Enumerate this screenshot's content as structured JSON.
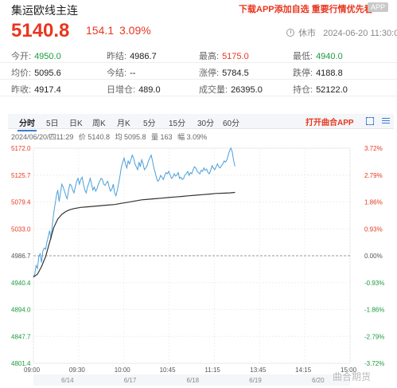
{
  "header": {
    "title": "集运欧线主连",
    "promo": "下载APP添加自选 重要行情优先看",
    "app_badge": "APP"
  },
  "quote": {
    "price": "5140.8",
    "change": "154.1",
    "change_pct": "3.09%",
    "status": "休市",
    "datetime": "2024-06-20 11:30:00"
  },
  "stats": [
    [
      {
        "label": "今开:",
        "value": "4950.0",
        "color": "green"
      },
      {
        "label": "昨结:",
        "value": "4986.7",
        "color": ""
      },
      {
        "label": "最高:",
        "value": "5175.0",
        "color": "red"
      },
      {
        "label": "最低:",
        "value": "4940.0",
        "color": "green"
      }
    ],
    [
      {
        "label": "均价:",
        "value": "5095.6",
        "color": ""
      },
      {
        "label": "今结:",
        "value": "--",
        "color": ""
      },
      {
        "label": "涨停:",
        "value": "5784.5",
        "color": ""
      },
      {
        "label": "跌停:",
        "value": "4188.8",
        "color": ""
      }
    ],
    [
      {
        "label": "昨收:",
        "value": "4917.4",
        "color": ""
      },
      {
        "label": "日增仓:",
        "value": "489.0",
        "color": ""
      },
      {
        "label": "成交量:",
        "value": "26395.0",
        "color": ""
      },
      {
        "label": "持仓:",
        "value": "52122.0",
        "color": ""
      }
    ]
  ],
  "tabs": [
    "分时",
    "5日",
    "日K",
    "周K",
    "月K",
    "5分",
    "15分",
    "30分",
    "60分"
  ],
  "open_app": "打开曲合APP",
  "legend": {
    "time": "2024/06/20/四11:29",
    "price": "价 5140.8",
    "avg": "均 5095.8",
    "volume": "量 163",
    "amplitude": "幅 3.09%"
  },
  "watermark": "曲合期货",
  "chart_data": {
    "type": "line",
    "y_ticks_left": [
      "5172.0",
      "5125.7",
      "5079.4",
      "5033.0",
      "4986.7",
      "4940.4",
      "4894.0",
      "4847.7",
      "4801.4"
    ],
    "y_ticks_right": [
      "3.72%",
      "2.79%",
      "1.86%",
      "0.93%",
      "0.00%",
      "-0.93%",
      "-1.86%",
      "-2.79%",
      "-3.72%"
    ],
    "y_tick_colors": [
      "red",
      "red",
      "red",
      "red",
      "neutral",
      "green",
      "green",
      "green",
      "green"
    ],
    "x_ticks": [
      "09:00",
      "09:30",
      "10:00",
      "10:45",
      "11:15",
      "13:45",
      "14:15",
      "15:00"
    ],
    "x_dates": [
      "6/14",
      "6/17",
      "6/18",
      "6/19",
      "6/20"
    ],
    "ylim": [
      4801.4,
      5172.0
    ],
    "baseline": 4986.7,
    "price_color": "#4a9fd8",
    "avg_color": "#333333",
    "series": [
      {
        "name": "价",
        "x": [
          0,
          1,
          2,
          3,
          4,
          5,
          6,
          7,
          8,
          9,
          10,
          11,
          12,
          13,
          14,
          15,
          16,
          17,
          18,
          19,
          20,
          21,
          22,
          23,
          24,
          25,
          26,
          27,
          28,
          29,
          30,
          31,
          32,
          33,
          34,
          35,
          36,
          37,
          38,
          39,
          40,
          41,
          42,
          43,
          44,
          45,
          46,
          47,
          48,
          49,
          50,
          51,
          52,
          53,
          54,
          55,
          56,
          57,
          58,
          59,
          60,
          61,
          62,
          63,
          64,
          65,
          66,
          67,
          68,
          69,
          70,
          71,
          72,
          73,
          74,
          75,
          76,
          77,
          78,
          79,
          80,
          81,
          82,
          83,
          84,
          85,
          86,
          87,
          88,
          89,
          90,
          91,
          92,
          93,
          94,
          95,
          96,
          97,
          98,
          99,
          100,
          101,
          102,
          103,
          104,
          105,
          106,
          107,
          108,
          109,
          110,
          111,
          112,
          113,
          114,
          115,
          116,
          117,
          118,
          119,
          120,
          121,
          122,
          123,
          124,
          125,
          126,
          127,
          128,
          129,
          130,
          131,
          132,
          133,
          134,
          135,
          136,
          137,
          138,
          139,
          140,
          141,
          142,
          143,
          144,
          145,
          146,
          147,
          148,
          149
        ],
        "values": [
          4950,
          4955,
          4970,
          4965,
          4985,
          4990,
          4975,
          4995,
          5000,
          4998,
          5010,
          5020,
          5030,
          5015,
          5040,
          5060,
          5075,
          5090,
          5100,
          5080,
          5095,
          5110,
          5105,
          5098,
          5090,
          5085,
          5100,
          5110,
          5108,
          5100,
          5095,
          5105,
          5115,
          5120,
          5110,
          5118,
          5122,
          5110,
          5100,
          5095,
          5105,
          5112,
          5120,
          5110,
          5100,
          5105,
          5098,
          5102,
          5110,
          5115,
          5120,
          5118,
          5110,
          5108,
          5112,
          5115,
          5105,
          5098,
          5102,
          5110,
          5095,
          5090,
          5100,
          5112,
          5125,
          5140,
          5148,
          5155,
          5145,
          5138,
          5150,
          5145,
          5152,
          5160,
          5155,
          5145,
          5140,
          5135,
          5148,
          5140,
          5152,
          5145,
          5135,
          5138,
          5142,
          5150,
          5155,
          5160,
          5150,
          5138,
          5130,
          5120,
          5115,
          5118,
          5125,
          5122,
          5118,
          5125,
          5130,
          5128,
          5132,
          5126,
          5120,
          5122,
          5128,
          5124,
          5126,
          5130,
          5120,
          5122,
          5118,
          5120,
          5126,
          5128,
          5132,
          5125,
          5130,
          5128,
          5135,
          5140,
          5138,
          5132,
          5130,
          5128,
          5134,
          5132,
          5138,
          5134,
          5136,
          5130,
          5128,
          5134,
          5142,
          5138,
          5135,
          5140,
          5145,
          5140,
          5138,
          5142,
          5145,
          5150,
          5148,
          5152,
          5160,
          5168,
          5172,
          5165,
          5150,
          5140.8
        ]
      },
      {
        "name": "均",
        "x": [
          0,
          3,
          6,
          9,
          12,
          15,
          18,
          21,
          24,
          27,
          30,
          35,
          40,
          45,
          50,
          55,
          60,
          65,
          70,
          75,
          80,
          85,
          90,
          95,
          100,
          105,
          110,
          115,
          120,
          125,
          130,
          135,
          140,
          145,
          149
        ],
        "values": [
          4950,
          4955,
          4968,
          4985,
          5010,
          5035,
          5050,
          5058,
          5063,
          5066,
          5068,
          5070,
          5071,
          5072,
          5073,
          5074,
          5075,
          5077,
          5079,
          5081,
          5083,
          5084,
          5085,
          5086,
          5087,
          5088,
          5089,
          5090,
          5091,
          5092,
          5093,
          5094,
          5094.5,
          5095,
          5095.8
        ]
      }
    ]
  }
}
